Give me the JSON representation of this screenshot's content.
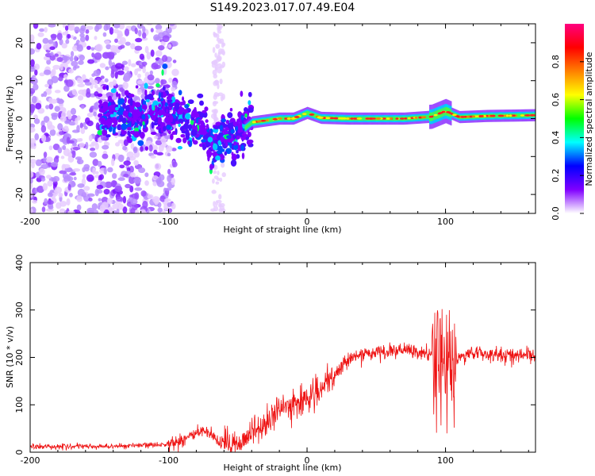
{
  "title": "S149.2023.017.07.49.E04",
  "chart_data": [
    {
      "type": "heatmap",
      "xlabel": "Height of straight line (km)",
      "ylabel": "Frequency (Hz)",
      "xlim": [
        -200,
        165
      ],
      "ylim": [
        -25,
        25
      ],
      "xticks": [
        -200,
        -100,
        0,
        100
      ],
      "yticks": [
        -20,
        -10,
        0,
        10,
        20
      ],
      "colorbar": {
        "label": "Normalized spectral amplitude",
        "range": [
          0,
          1
        ],
        "ticks": [
          "0.0",
          "0.2",
          "0.4",
          "0.6",
          "0.8"
        ],
        "colors": [
          "#ffffff",
          "#8000ff",
          "#0000ff",
          "#00ffff",
          "#00ff00",
          "#ffff00",
          "#ff8000",
          "#ff0000",
          "#ff0080"
        ]
      },
      "ridge": {
        "x": [
          -140,
          -120,
          -105,
          -90,
          -75,
          -68,
          -60,
          -50,
          -40,
          -30,
          -20,
          -10,
          0,
          10,
          30,
          50,
          70,
          90,
          100,
          110,
          130,
          150,
          165
        ],
        "y": [
          1,
          0,
          3,
          0,
          -3,
          -8,
          -4,
          -4,
          -1,
          -0.5,
          0,
          0,
          1.5,
          0.2,
          0,
          0,
          0,
          0.5,
          2,
          0.4,
          0.7,
          0.8,
          0.9
        ]
      }
    },
    {
      "type": "line",
      "xlabel": "Height of straight line (km)",
      "ylabel": "SNR (10 * v/v)",
      "xlim": [
        -200,
        165
      ],
      "ylim": [
        0,
        400
      ],
      "xticks": [
        -200,
        -100,
        0,
        100
      ],
      "yticks": [
        0,
        100,
        200,
        300,
        400
      ],
      "color": "#ff0000",
      "trend": {
        "x": [
          -200,
          -150,
          -110,
          -95,
          -88,
          -75,
          -62,
          -50,
          -40,
          -30,
          -20,
          -10,
          0,
          10,
          20,
          30,
          50,
          70,
          90,
          95,
          100,
          103,
          106,
          110,
          120,
          140,
          165
        ],
        "y": [
          12,
          12,
          15,
          20,
          30,
          45,
          18,
          20,
          40,
          60,
          90,
          100,
          115,
          130,
          160,
          200,
          210,
          215,
          205,
          200,
          185,
          170,
          180,
          200,
          210,
          205,
          205
        ]
      }
    }
  ]
}
